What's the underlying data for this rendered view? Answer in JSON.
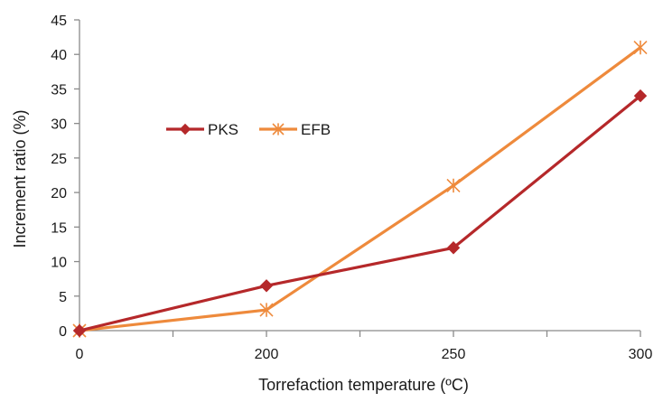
{
  "chart_data": {
    "type": "line",
    "title": "",
    "xlabel": "Torrefaction temperature (ºC)",
    "ylabel": "Increment ratio (%)",
    "categories": [
      "0",
      "200",
      "250",
      "300"
    ],
    "ylim": [
      0,
      45
    ],
    "yticks": [
      "0",
      "5",
      "10",
      "15",
      "20",
      "25",
      "30",
      "35",
      "40",
      "45"
    ],
    "grid": false,
    "legend_position": "upper-left",
    "series": [
      {
        "name": "PKS",
        "marker": "diamond",
        "color": "#b5282a",
        "values": [
          0,
          6.5,
          12,
          34
        ]
      },
      {
        "name": "EFB",
        "marker": "star",
        "color": "#ee8a3c",
        "values": [
          0,
          3,
          21,
          41
        ]
      }
    ]
  }
}
